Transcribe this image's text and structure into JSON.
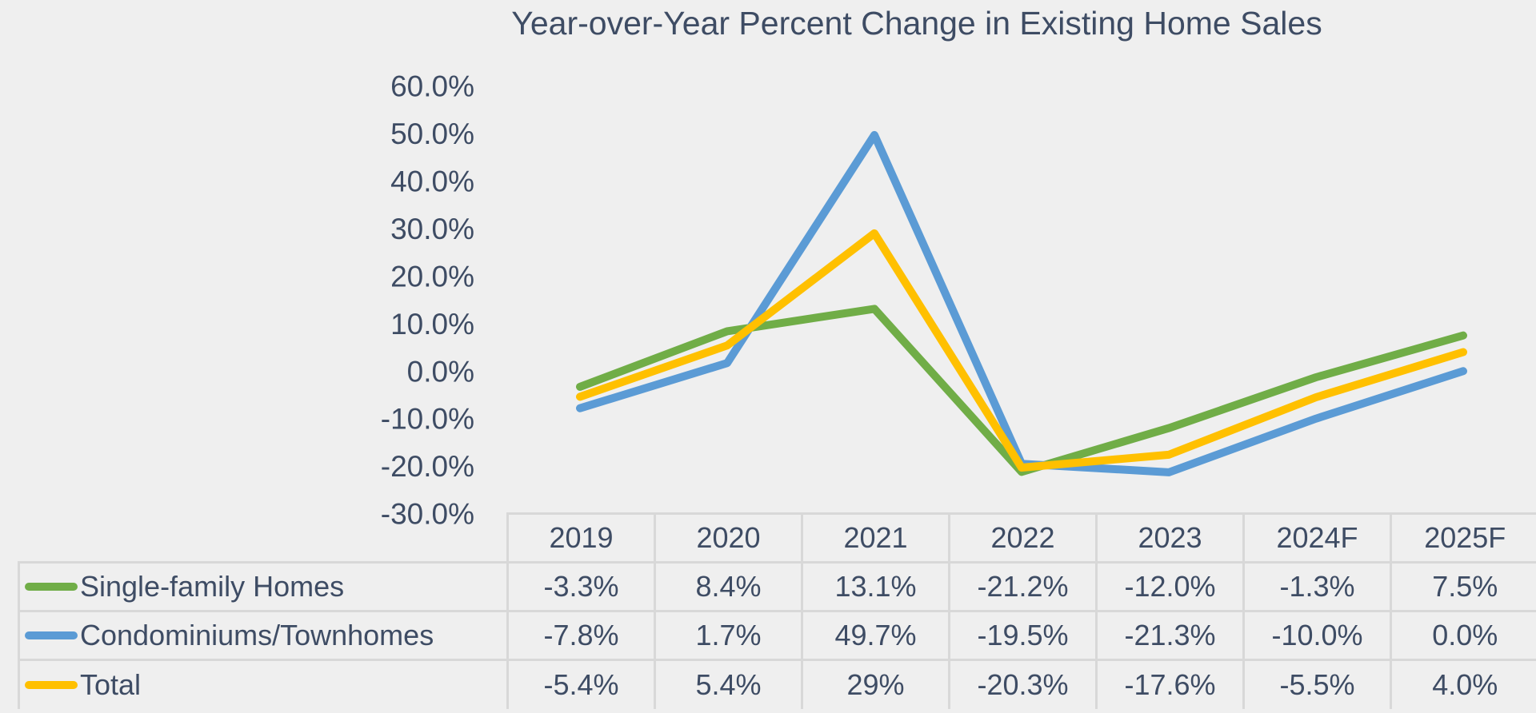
{
  "chart_data": {
    "type": "line",
    "title": "Year-over-Year Percent Change in Existing Home Sales",
    "categories": [
      "2019",
      "2020",
      "2021",
      "2022",
      "2023",
      "2024F",
      "2025F"
    ],
    "series": [
      {
        "name": "Single-family Homes",
        "color": "#70AD47",
        "values": [
          -3.3,
          8.4,
          13.1,
          -21.2,
          -12.0,
          -1.3,
          7.5
        ],
        "labels": [
          "-3.3%",
          "8.4%",
          "13.1%",
          "-21.2%",
          "-12.0%",
          "-1.3%",
          "7.5%"
        ]
      },
      {
        "name": "Condominiums/Townhomes",
        "color": "#5B9BD5",
        "values": [
          -7.8,
          1.7,
          49.7,
          -19.5,
          -21.3,
          -10.0,
          0.0
        ],
        "labels": [
          "-7.8%",
          "1.7%",
          "49.7%",
          "-19.5%",
          "-21.3%",
          "-10.0%",
          "0.0%"
        ]
      },
      {
        "name": "Total",
        "color": "#FFC000",
        "values": [
          -5.4,
          5.4,
          29,
          -20.3,
          -17.6,
          -5.5,
          4.0
        ],
        "labels": [
          "-5.4%",
          "5.4%",
          "29%",
          "-20.3%",
          "-17.6%",
          "-5.5%",
          "4.0%"
        ]
      }
    ],
    "y_axis": {
      "tick_labels": [
        "60.0%",
        "50.0%",
        "40.0%",
        "30.0%",
        "20.0%",
        "10.0%",
        "0.0%",
        "-10.0%",
        "-20.0%",
        "-30.0%"
      ],
      "tick_values": [
        60,
        50,
        40,
        30,
        20,
        10,
        0,
        -10,
        -20,
        -30
      ],
      "min": -30,
      "max": 60
    },
    "gridlines": false,
    "legend_position": "table-left"
  },
  "colors": {
    "background": "#EFEFEF",
    "text": "#3E4C64",
    "table_border": "#D8D8D8",
    "series_green": "#70AD47",
    "series_blue": "#5B9BD5",
    "series_yellow": "#FFC000"
  }
}
